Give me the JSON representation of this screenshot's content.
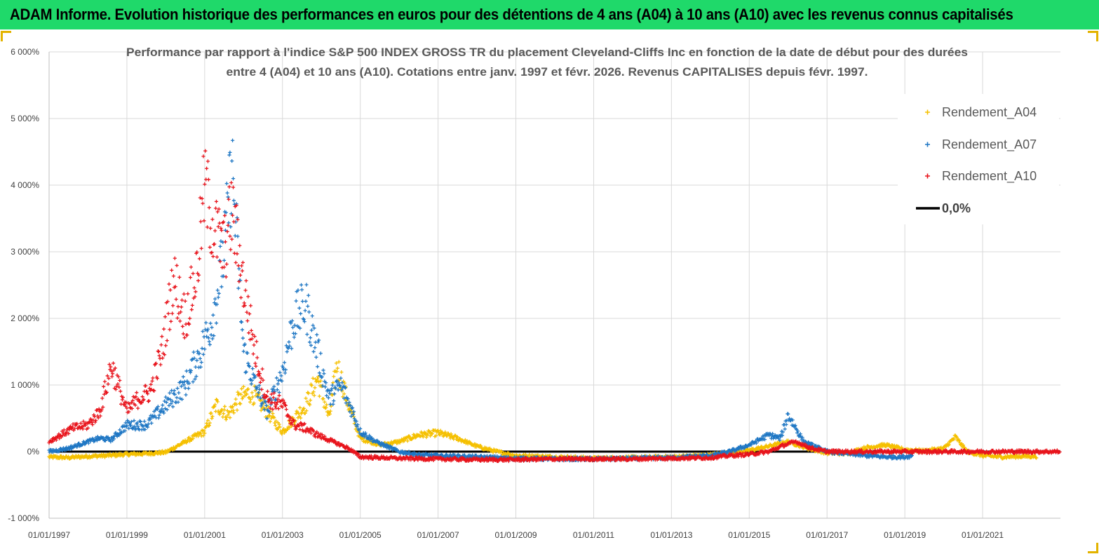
{
  "banner": {
    "title": "ADAM Informe. Evolution historique des performances en euros pour des détentions de 4 ans (A04) à 10 ans (A10) avec les revenus connus capitalisés"
  },
  "chart_data": {
    "type": "scatter",
    "title_line1": "Performance par rapport à l'indice S&P 500 INDEX GROSS TR  du placement Cleveland-Cliffs Inc en fonction de la date de début pour des durées",
    "title_line2": "entre 4 (A04) et 10 ans (A10).  Cotations entre janv. 1997 et févr. 2026. Revenus CAPITALISES depuis févr. 1997.",
    "xlabel": "",
    "ylabel": "",
    "xlim": [
      1997.0,
      2023.0
    ],
    "ylim": [
      -1000,
      6000
    ],
    "y_ticks": [
      -1000,
      0,
      1000,
      2000,
      3000,
      4000,
      5000,
      6000
    ],
    "y_tick_labels": [
      "-1 000%",
      "0%",
      "1 000%",
      "2 000%",
      "3 000%",
      "4 000%",
      "5 000%",
      "6 000%"
    ],
    "x_ticks": [
      1997,
      1999,
      2001,
      2003,
      2005,
      2007,
      2009,
      2011,
      2013,
      2015,
      2017,
      2019,
      2021
    ],
    "x_tick_labels": [
      "01/01/1997",
      "01/01/1999",
      "01/01/2001",
      "01/01/2003",
      "01/01/2005",
      "01/01/2007",
      "01/01/2009",
      "01/01/2011",
      "01/01/2013",
      "01/01/2015",
      "01/01/2017",
      "01/01/2019",
      "01/01/2021"
    ],
    "grid": true,
    "legend_position": "top-right",
    "zero_line": {
      "name": "0,0%",
      "value": 0,
      "color": "#000000"
    },
    "series": [
      {
        "name": "Rendement_A04",
        "color": "#f5c000",
        "marker": "+",
        "x": [
          1997.0,
          1997.5,
          1998.0,
          1998.5,
          1999.0,
          1999.5,
          2000.0,
          2000.5,
          2001.0,
          2001.3,
          2001.6,
          2001.9,
          2002.2,
          2002.6,
          2003.0,
          2003.3,
          2003.6,
          2003.9,
          2004.2,
          2004.4,
          2004.7,
          2005.0,
          2005.5,
          2006.0,
          2006.5,
          2007.0,
          2007.5,
          2008.0,
          2008.5,
          2009.0,
          2010.0,
          2011.0,
          2012.0,
          2013.0,
          2014.0,
          2014.5,
          2015.0,
          2015.5,
          2016.0,
          2016.5,
          2017.0,
          2017.5,
          2018.0,
          2018.5,
          2019.0,
          2019.5,
          2020.0,
          2020.3,
          2020.6,
          2021.0,
          2021.5,
          2022.0,
          2022.4
        ],
        "y": [
          -80,
          -90,
          -70,
          -60,
          -40,
          -30,
          -10,
          150,
          300,
          700,
          550,
          800,
          900,
          600,
          300,
          500,
          700,
          1100,
          500,
          1300,
          700,
          200,
          100,
          150,
          250,
          280,
          200,
          80,
          0,
          -60,
          -80,
          -100,
          -90,
          -80,
          -50,
          -20,
          20,
          80,
          150,
          50,
          -20,
          -30,
          60,
          100,
          30,
          10,
          50,
          220,
          0,
          -60,
          -80,
          -70,
          -70
        ]
      },
      {
        "name": "Rendement_A07",
        "color": "#1f77c4",
        "marker": "+",
        "x": [
          1997.0,
          1997.5,
          1998.0,
          1998.3,
          1998.6,
          1999.0,
          1999.5,
          2000.0,
          2000.5,
          2000.9,
          2001.2,
          2001.5,
          2001.7,
          2002.0,
          2002.3,
          2002.6,
          2003.0,
          2003.3,
          2003.6,
          2003.9,
          2004.2,
          2004.5,
          2004.8,
          2005.0,
          2005.4,
          2006.0,
          2006.5,
          2007.0,
          2008.0,
          2009.0,
          2010.0,
          2011.0,
          2012.0,
          2013.0,
          2014.0,
          2014.5,
          2015.0,
          2015.5,
          2015.8,
          2016.0,
          2016.4,
          2017.0,
          2017.5,
          2018.0,
          2018.5,
          2019.0,
          2019.2
        ],
        "y": [
          0,
          50,
          150,
          200,
          180,
          400,
          400,
          700,
          1000,
          1500,
          2000,
          3000,
          4300,
          1500,
          1000,
          600,
          1200,
          2000,
          2200,
          1500,
          800,
          1000,
          600,
          300,
          150,
          0,
          -50,
          -60,
          -80,
          -100,
          -110,
          -110,
          -100,
          -90,
          -60,
          0,
          100,
          250,
          200,
          550,
          150,
          0,
          -30,
          -60,
          -80,
          -80,
          -60
        ]
      },
      {
        "name": "Rendement_A10",
        "color": "#e8141c",
        "marker": "+",
        "x": [
          1997.0,
          1997.3,
          1997.6,
          1998.0,
          1998.3,
          1998.6,
          1999.0,
          1999.3,
          1999.6,
          1999.9,
          2000.2,
          2000.5,
          2000.8,
          2001.0,
          2001.2,
          2001.5,
          2001.7,
          2002.0,
          2002.3,
          2002.6,
          2003.0,
          2003.3,
          2003.6,
          2003.9,
          2004.3,
          2004.7,
          2005.0,
          2005.5,
          2006.0,
          2007.0,
          2008.0,
          2009.0,
          2010.0,
          2011.0,
          2012.0,
          2013.0,
          2014.0,
          2014.5,
          2015.0,
          2015.5,
          2015.9,
          2016.2,
          2016.6,
          2017.0,
          2018.0,
          2019.0,
          2020.0,
          2021.0,
          2022.0,
          2023.0
        ],
        "y": [
          150,
          250,
          350,
          400,
          600,
          1300,
          600,
          800,
          900,
          1500,
          2600,
          2000,
          2700,
          4000,
          3400,
          3000,
          3600,
          2500,
          1500,
          800,
          700,
          400,
          350,
          250,
          150,
          50,
          -80,
          -90,
          -100,
          -110,
          -120,
          -120,
          -110,
          -110,
          -110,
          -100,
          -90,
          -60,
          -40,
          0,
          100,
          150,
          50,
          0,
          0,
          0,
          0,
          0,
          0,
          0
        ]
      }
    ]
  }
}
